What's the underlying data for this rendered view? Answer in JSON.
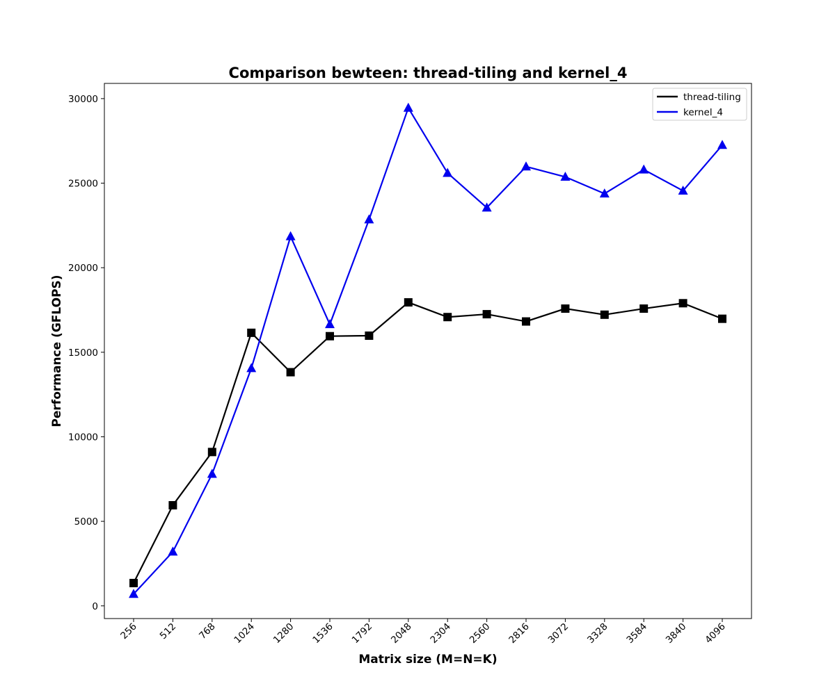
{
  "chart_data": {
    "type": "line",
    "title": "Comparison bewteen: thread-tiling and kernel_4",
    "xlabel": "Matrix size (M=N=K)",
    "ylabel": "Performance (GFLOPS)",
    "categories": [
      "256",
      "512",
      "768",
      "1024",
      "1280",
      "1536",
      "1792",
      "2048",
      "2304",
      "2560",
      "2816",
      "3072",
      "3328",
      "3584",
      "3840",
      "4096"
    ],
    "y_ticks": [
      "0",
      "5000",
      "10000",
      "15000",
      "20000",
      "25000",
      "30000"
    ],
    "ylim": [
      -750,
      30900
    ],
    "grid": false,
    "legend_position": "top-right",
    "series": [
      {
        "name": "thread-tiling",
        "color": "#000000",
        "marker": "square",
        "values": [
          1350,
          5950,
          9100,
          16150,
          13820,
          15950,
          15980,
          17950,
          17080,
          17250,
          16820,
          17580,
          17220,
          17580,
          17900,
          16980
        ]
      },
      {
        "name": "kernel_4",
        "color": "#0000ee",
        "marker": "triangle",
        "values": [
          700,
          3200,
          7800,
          14050,
          21850,
          16650,
          22850,
          29450,
          25600,
          23550,
          25980,
          25370,
          24380,
          25800,
          24550,
          27250
        ]
      }
    ]
  }
}
